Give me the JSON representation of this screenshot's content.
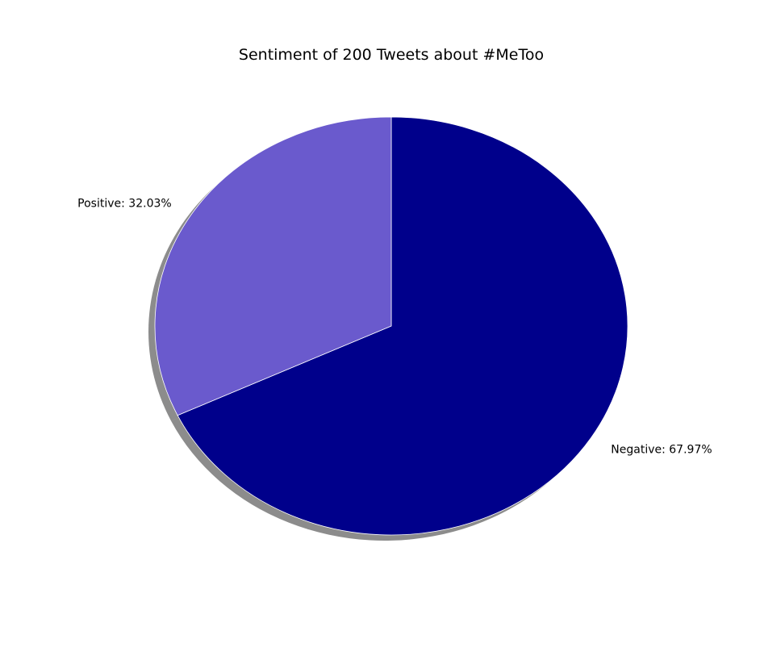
{
  "chart_data": {
    "type": "pie",
    "title": "Sentiment of 200 Tweets about #MeToo",
    "slices": [
      {
        "name": "Negative",
        "value": 67.97,
        "label": "Negative: 67.97%",
        "color": "#00008b"
      },
      {
        "name": "Positive",
        "value": 32.03,
        "label": "Positive: 32.03%",
        "color": "#6a5acd"
      }
    ],
    "start_angle_deg": 90,
    "direction": "clockwise",
    "shadow": true,
    "edge_color": "#ffffff"
  }
}
